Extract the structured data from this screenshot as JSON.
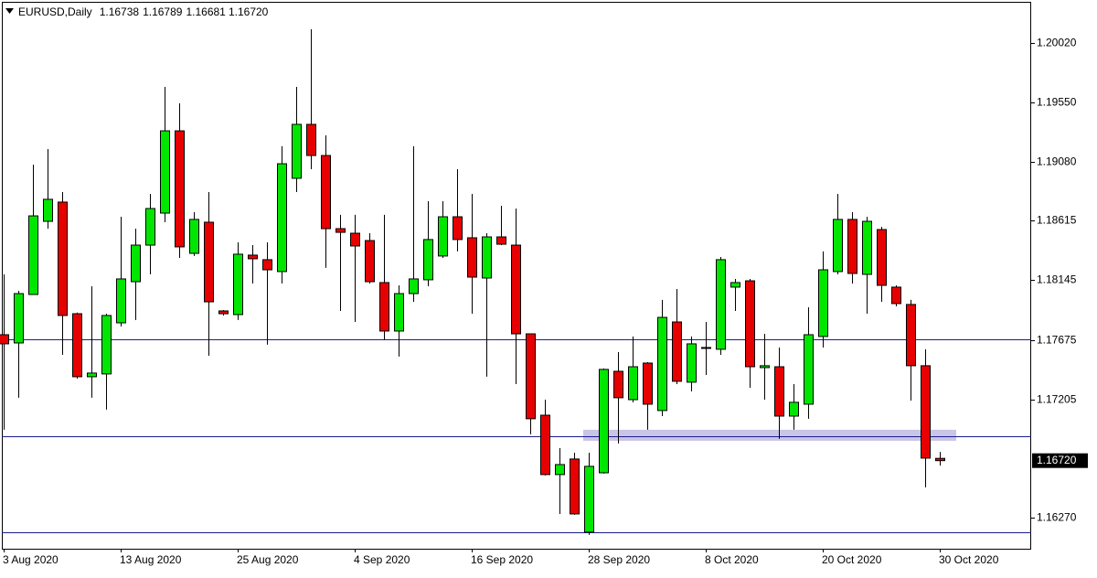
{
  "chart_data": {
    "type": "candlestick",
    "symbol": "EURUSD,Daily",
    "up_color": "#00e600",
    "down_color": "#e60000",
    "level_color": "#1c1c8c",
    "zone_color": "#c9c5e6",
    "categories": [
      "3 Aug 2020",
      null,
      null,
      null,
      null,
      null,
      null,
      null,
      "13 Aug 2020",
      null,
      null,
      null,
      null,
      null,
      null,
      null,
      "25 Aug 2020",
      null,
      null,
      null,
      null,
      null,
      null,
      null,
      "4 Sep 2020",
      null,
      null,
      null,
      null,
      null,
      null,
      null,
      "16 Sep 2020",
      null,
      null,
      null,
      null,
      null,
      null,
      null,
      "28 Sep 2020",
      null,
      null,
      null,
      null,
      null,
      null,
      null,
      "8 Oct 2020",
      null,
      null,
      null,
      null,
      null,
      null,
      null,
      "20 Oct 2020",
      null,
      null,
      null,
      null,
      null,
      null,
      null,
      "30 Oct 2020"
    ],
    "open": [
      1.17715,
      1.1765,
      1.18033,
      1.18611,
      1.18763,
      1.17881,
      1.17383,
      1.17405,
      1.17809,
      1.18134,
      1.18423,
      1.18676,
      1.19326,
      1.18358,
      1.18604,
      1.17903,
      1.17874,
      1.18344,
      1.18308,
      1.18214,
      1.18951,
      1.19377,
      1.19131,
      1.18553,
      1.18517,
      1.18459,
      1.18127,
      1.17744,
      1.1804,
      1.18149,
      1.18337,
      1.18647,
      1.18481,
      1.18163,
      1.18488,
      1.18423,
      1.17722,
      1.17079,
      1.1661,
      1.16733,
      1.16155,
      1.16624,
      1.17426,
      1.17202,
      1.17491,
      1.17116,
      1.17816,
      1.1734,
      1.17614,
      1.176,
      1.18091,
      1.18141,
      1.17455,
      1.17462,
      1.17072,
      1.17166,
      1.17701,
      1.18214,
      1.18626,
      1.18192,
      1.18546,
      1.18091,
      1.17954,
      1.1747,
      1.16738
    ],
    "high": [
      1.18192,
      1.18062,
      1.19059,
      1.19182,
      1.18842,
      1.1789,
      1.18098,
      1.17881,
      1.18647,
      1.18553,
      1.18828,
      1.19673,
      1.19543,
      1.18683,
      1.18842,
      1.1791,
      1.18445,
      1.18423,
      1.18445,
      1.19204,
      1.19673,
      1.20128,
      1.1929,
      1.18662,
      1.18662,
      1.18517,
      1.18662,
      1.18105,
      1.19204,
      1.1877,
      1.1877,
      1.19023,
      1.18828,
      1.18517,
      1.18734,
      1.18712,
      1.17722,
      1.17202,
      1.16819,
      1.16783,
      1.16783,
      1.17448,
      1.17578,
      1.17701,
      1.17498,
      1.1799,
      1.18076,
      1.17701,
      1.17816,
      1.18329,
      1.18156,
      1.18156,
      1.17722,
      1.17614,
      1.17325,
      1.17932,
      1.18373,
      1.18828,
      1.18683,
      1.18647,
      1.18568,
      1.18105,
      1.1799,
      1.176,
      1.16789
    ],
    "low": [
      1.16964,
      1.17217,
      1.18033,
      1.18553,
      1.17556,
      1.17368,
      1.17217,
      1.17123,
      1.1778,
      1.17831,
      1.18192,
      1.18604,
      1.18322,
      1.18337,
      1.17549,
      1.17867,
      1.17831,
      1.1812,
      1.17636,
      1.1812,
      1.18842,
      1.19023,
      1.18243,
      1.17903,
      1.17816,
      1.1812,
      1.17672,
      1.17542,
      1.17975,
      1.18098,
      1.18322,
      1.18373,
      1.17881,
      1.17383,
      1.18423,
      1.17325,
      1.16928,
      1.16603,
      1.16299,
      1.16292,
      1.16133,
      1.16617,
      1.16855,
      1.17181,
      1.16964,
      1.17072,
      1.17325,
      1.17267,
      1.17397,
      1.17556,
      1.17903,
      1.17296,
      1.17202,
      1.16892,
      1.16964,
      1.17051,
      1.17614,
      1.18192,
      1.1812,
      1.17881,
      1.17975,
      1.17939,
      1.17195,
      1.16509,
      1.16681
    ],
    "close": [
      1.17643,
      1.1804,
      1.18654,
      1.18785,
      1.17867,
      1.17383,
      1.17412,
      1.17867,
      1.18156,
      1.18423,
      1.18712,
      1.19326,
      1.18409,
      1.18626,
      1.17975,
      1.17881,
      1.18351,
      1.18315,
      1.18228,
      1.19066,
      1.19377,
      1.19131,
      1.18553,
      1.18524,
      1.18416,
      1.18134,
      1.17744,
      1.1804,
      1.18156,
      1.18467,
      1.18647,
      1.18467,
      1.1817,
      1.18488,
      1.1843,
      1.17722,
      1.17051,
      1.1661,
      1.16689,
      1.16299,
      1.16675,
      1.17441,
      1.17217,
      1.17462,
      1.17166,
      1.17852,
      1.17347,
      1.17643,
      1.17607,
      1.18308,
      1.18127,
      1.17462,
      1.1747,
      1.17072,
      1.17181,
      1.17715,
      1.18228,
      1.18626,
      1.18199,
      1.18611,
      1.18105,
      1.17961,
      1.1747,
      1.1674,
      1.1672
    ],
    "last_price": {
      "value": 1.1672,
      "label": "1.16720"
    },
    "levels": [
      1.17679,
      1.16913,
      1.16155
    ],
    "zone": [
      1.16877,
      1.16964
    ],
    "ylim": [
      1.16024,
      1.20338
    ],
    "yticks": [
      {
        "value": 1.2002,
        "label": "1.20020"
      },
      {
        "value": 1.1955,
        "label": "1.19550"
      },
      {
        "value": 1.1908,
        "label": "1.19080"
      },
      1.18615,
      1.18145,
      1.17675,
      1.17205,
      {
        "value": 1.1627,
        "label": "1.16270"
      }
    ]
  }
}
